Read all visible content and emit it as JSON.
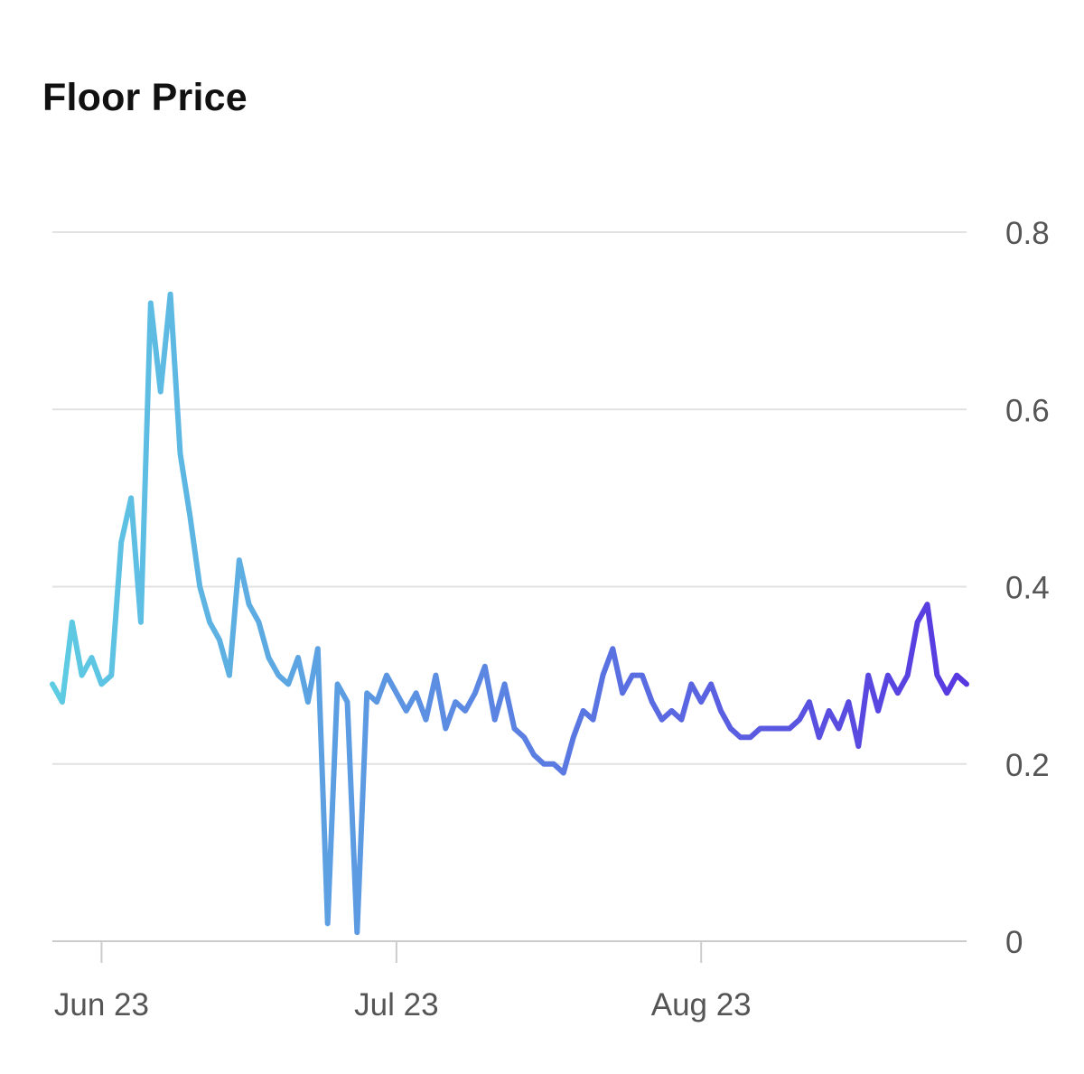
{
  "chart_data": {
    "type": "line",
    "title": "Floor Price",
    "xlabel": "",
    "ylabel": "",
    "x_range": [
      "2023-05-27",
      "2023-08-28"
    ],
    "ylim": [
      0,
      0.8
    ],
    "y_ticks": [
      0,
      0.2,
      0.4,
      0.6,
      0.8
    ],
    "y_tick_labels": [
      "0",
      "0.2",
      "0.4",
      "0.6",
      "0.8"
    ],
    "x_ticks": [
      "2023-06-01",
      "2023-07-01",
      "2023-08-01"
    ],
    "x_tick_labels": [
      "Jun 23",
      "Jul 23",
      "Aug 23"
    ],
    "y_axis_position": "right",
    "grid": true,
    "legend": "none",
    "colors": {
      "gradient_start": "#5ecce3",
      "gradient_end": "#5838e0",
      "grid": "#e2e2e2",
      "axis": "#cccccc"
    },
    "series": [
      {
        "x": [
          "2023-05-27",
          "2023-05-28",
          "2023-05-29",
          "2023-05-30",
          "2023-05-31",
          "2023-06-01",
          "2023-06-02",
          "2023-06-03",
          "2023-06-04",
          "2023-06-05",
          "2023-06-06",
          "2023-06-07",
          "2023-06-08",
          "2023-06-09",
          "2023-06-10",
          "2023-06-11",
          "2023-06-12",
          "2023-06-13",
          "2023-06-14",
          "2023-06-15",
          "2023-06-16",
          "2023-06-17",
          "2023-06-18",
          "2023-06-19",
          "2023-06-20",
          "2023-06-21",
          "2023-06-22",
          "2023-06-23",
          "2023-06-24",
          "2023-06-25",
          "2023-06-26",
          "2023-06-27",
          "2023-06-28",
          "2023-06-29",
          "2023-06-30",
          "2023-07-01",
          "2023-07-02",
          "2023-07-03",
          "2023-07-04",
          "2023-07-05",
          "2023-07-06",
          "2023-07-07",
          "2023-07-08",
          "2023-07-09",
          "2023-07-10",
          "2023-07-11",
          "2023-07-12",
          "2023-07-13",
          "2023-07-14",
          "2023-07-15",
          "2023-07-16",
          "2023-07-17",
          "2023-07-18",
          "2023-07-19",
          "2023-07-20",
          "2023-07-21",
          "2023-07-22",
          "2023-07-23",
          "2023-07-24",
          "2023-07-25",
          "2023-07-26",
          "2023-07-27",
          "2023-07-28",
          "2023-07-29",
          "2023-07-30",
          "2023-07-31",
          "2023-08-01",
          "2023-08-02",
          "2023-08-03",
          "2023-08-04",
          "2023-08-05",
          "2023-08-06",
          "2023-08-07",
          "2023-08-08",
          "2023-08-09",
          "2023-08-10",
          "2023-08-11",
          "2023-08-12",
          "2023-08-13",
          "2023-08-14",
          "2023-08-15",
          "2023-08-16",
          "2023-08-17",
          "2023-08-18",
          "2023-08-19",
          "2023-08-20",
          "2023-08-21",
          "2023-08-22",
          "2023-08-23",
          "2023-08-24",
          "2023-08-25",
          "2023-08-26",
          "2023-08-27",
          "2023-08-28"
        ],
        "values": [
          0.29,
          0.27,
          0.36,
          0.3,
          0.32,
          0.29,
          0.3,
          0.45,
          0.5,
          0.36,
          0.72,
          0.62,
          0.73,
          0.55,
          0.48,
          0.4,
          0.36,
          0.34,
          0.3,
          0.43,
          0.38,
          0.36,
          0.32,
          0.3,
          0.29,
          0.32,
          0.27,
          0.33,
          0.02,
          0.29,
          0.27,
          0.01,
          0.28,
          0.27,
          0.3,
          0.28,
          0.26,
          0.28,
          0.25,
          0.3,
          0.24,
          0.27,
          0.26,
          0.28,
          0.31,
          0.25,
          0.29,
          0.24,
          0.23,
          0.21,
          0.2,
          0.2,
          0.19,
          0.23,
          0.26,
          0.25,
          0.3,
          0.33,
          0.28,
          0.3,
          0.3,
          0.27,
          0.25,
          0.26,
          0.25,
          0.29,
          0.27,
          0.29,
          0.26,
          0.24,
          0.23,
          0.23,
          0.24,
          0.24,
          0.24,
          0.24,
          0.25,
          0.27,
          0.23,
          0.26,
          0.24,
          0.27,
          0.22,
          0.3,
          0.26,
          0.3,
          0.28,
          0.3,
          0.36,
          0.38,
          0.3,
          0.28,
          0.3,
          0.29
        ]
      }
    ]
  }
}
